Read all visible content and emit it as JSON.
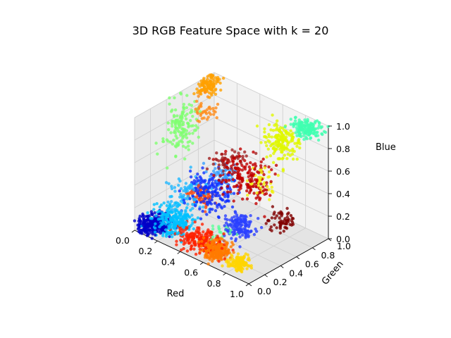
{
  "chart_data": {
    "type": "scatter",
    "projection": "3d",
    "title": "3D RGB Feature Space with k = 20",
    "xlabel": "Red",
    "ylabel": "Green",
    "zlabel": "Blue",
    "xlim": [
      0,
      1
    ],
    "ylim": [
      0,
      1
    ],
    "zlim": [
      0,
      1
    ],
    "xticks": [
      "0.0",
      "0.2",
      "0.4",
      "0.6",
      "0.8",
      "1.0"
    ],
    "yticks": [
      "0.0",
      "0.2",
      "0.4",
      "0.6",
      "0.8",
      "1.0"
    ],
    "zticks": [
      "0.0",
      "0.2",
      "0.4",
      "0.6",
      "0.8",
      "1.0"
    ],
    "grid": true,
    "colormap": "jet",
    "k": 20,
    "clusters": [
      {
        "color": "#0000c8",
        "center": [
          0.08,
          0.12,
          0.04
        ],
        "spread": [
          0.05,
          0.08,
          0.03
        ],
        "count": 260
      },
      {
        "color": "#00c0ff",
        "center": [
          0.22,
          0.18,
          0.12
        ],
        "spread": [
          0.07,
          0.07,
          0.06
        ],
        "count": 240
      },
      {
        "color": "#20b8ff",
        "center": [
          0.18,
          0.42,
          0.22
        ],
        "spread": [
          0.06,
          0.12,
          0.07
        ],
        "count": 90
      },
      {
        "color": "#ff2000",
        "center": [
          0.45,
          0.18,
          0.05
        ],
        "spread": [
          0.09,
          0.06,
          0.04
        ],
        "count": 230
      },
      {
        "color": "#ff7a00",
        "center": [
          0.62,
          0.14,
          0.05
        ],
        "spread": [
          0.04,
          0.05,
          0.04
        ],
        "count": 220
      },
      {
        "color": "#ffd400",
        "center": [
          0.82,
          0.14,
          0.04
        ],
        "spread": [
          0.04,
          0.05,
          0.03
        ],
        "count": 120
      },
      {
        "color": "#ff4a10",
        "center": [
          0.26,
          0.48,
          0.24
        ],
        "spread": [
          0.04,
          0.05,
          0.04
        ],
        "count": 70
      },
      {
        "color": "#1030ff",
        "center": [
          0.32,
          0.5,
          0.3
        ],
        "spread": [
          0.08,
          0.1,
          0.07
        ],
        "count": 170
      },
      {
        "color": "#2a40ff",
        "center": [
          0.62,
          0.42,
          0.15
        ],
        "spread": [
          0.05,
          0.06,
          0.05
        ],
        "count": 150
      },
      {
        "color": "#c00000",
        "center": [
          0.56,
          0.6,
          0.5
        ],
        "spread": [
          0.1,
          0.1,
          0.08
        ],
        "count": 170
      },
      {
        "color": "#800000",
        "center": [
          0.75,
          0.78,
          0.12
        ],
        "spread": [
          0.05,
          0.06,
          0.04
        ],
        "count": 60
      },
      {
        "color": "#3aa0ff",
        "center": [
          0.36,
          0.6,
          0.42
        ],
        "spread": [
          0.05,
          0.05,
          0.04
        ],
        "count": 50
      },
      {
        "color": "#e0f800",
        "center": [
          0.7,
          0.84,
          0.78
        ],
        "spread": [
          0.06,
          0.06,
          0.08
        ],
        "count": 170
      },
      {
        "color": "#f0f010",
        "center": [
          0.68,
          0.62,
          0.5
        ],
        "spread": [
          0.05,
          0.05,
          0.05
        ],
        "count": 40
      },
      {
        "color": "#40ffb0",
        "center": [
          0.88,
          0.9,
          0.96
        ],
        "spread": [
          0.05,
          0.05,
          0.03
        ],
        "count": 160
      },
      {
        "color": "#80ff70",
        "center": [
          0.02,
          0.54,
          0.72
        ],
        "spread": [
          0.03,
          0.1,
          0.12
        ],
        "count": 140
      },
      {
        "color": "#ffa000",
        "center": [
          0.02,
          0.9,
          0.94
        ],
        "spread": [
          0.03,
          0.06,
          0.04
        ],
        "count": 110
      },
      {
        "color": "#a02020",
        "center": [
          0.38,
          0.65,
          0.55
        ],
        "spread": [
          0.05,
          0.08,
          0.06
        ],
        "count": 50
      },
      {
        "color": "#5cff9a",
        "center": [
          0.55,
          0.32,
          0.1
        ],
        "spread": [
          0.04,
          0.04,
          0.03
        ],
        "count": 20
      },
      {
        "color": "#ff8c1a",
        "center": [
          0.1,
          0.76,
          0.82
        ],
        "spread": [
          0.04,
          0.06,
          0.05
        ],
        "count": 40
      }
    ]
  }
}
